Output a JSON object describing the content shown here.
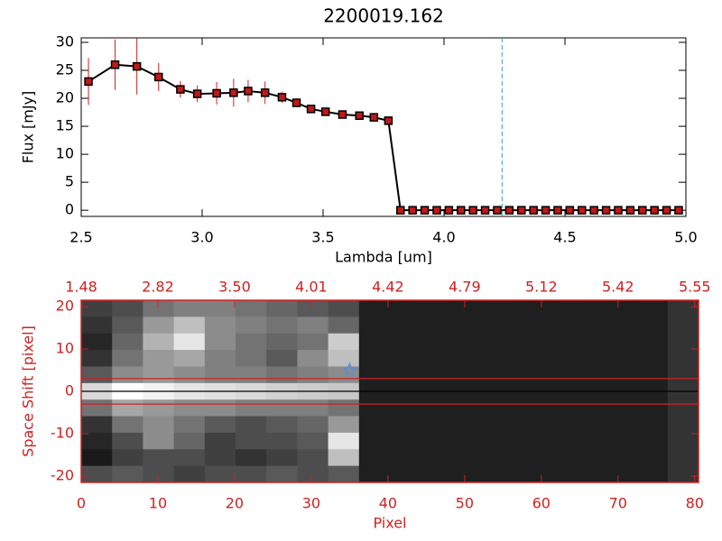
{
  "chart_data": [
    {
      "type": "line",
      "title": "2200019.162",
      "xlabel": "Lambda [um]",
      "ylabel": "Flux [mJy]",
      "x": [
        2.53,
        2.64,
        2.73,
        2.82,
        2.91,
        2.98,
        3.06,
        3.13,
        3.19,
        3.26,
        3.33,
        3.39,
        3.45,
        3.51,
        3.58,
        3.65,
        3.71,
        3.77,
        3.82,
        3.87,
        3.92,
        3.97,
        4.02,
        4.07,
        4.12,
        4.17,
        4.22,
        4.27,
        4.32,
        4.37,
        4.42,
        4.47,
        4.52,
        4.57,
        4.62,
        4.67,
        4.72,
        4.77,
        4.82,
        4.87,
        4.92,
        4.97
      ],
      "values": [
        23,
        26,
        25.7,
        23.8,
        21.6,
        20.8,
        20.9,
        21.0,
        21.3,
        21.0,
        20.2,
        19.2,
        18.1,
        17.6,
        17.1,
        16.9,
        16.6,
        16.0,
        0,
        0,
        0,
        0,
        0,
        0,
        0,
        0,
        0,
        0,
        0,
        0,
        0,
        0,
        0,
        0,
        0,
        0,
        0,
        0,
        0,
        0,
        0,
        0
      ],
      "errors": [
        4.2,
        4.5,
        5,
        2.5,
        1.5,
        1.5,
        2,
        2.5,
        2,
        2,
        1,
        0.8,
        0.3,
        0.3,
        0.3,
        0.3,
        0.3,
        0.3,
        0,
        0,
        0,
        0,
        0,
        0,
        0,
        0,
        0,
        0,
        0,
        0,
        0,
        0,
        0,
        0,
        0,
        0,
        0,
        0,
        0,
        0,
        0,
        0
      ],
      "color": "#000000",
      "marker_color": "#c01818",
      "error_color": "#d02020",
      "vline": 4.24,
      "vline_color": "#3aa0c0",
      "xlim": [
        2.5,
        5.0
      ],
      "ylim": [
        -1.1,
        30.8
      ],
      "xticks": [
        2.5,
        {
          "value": 3,
          "label": "3.0"
        },
        3.5,
        {
          "value": 4,
          "label": "4.0"
        },
        4.5,
        {
          "value": 5,
          "label": "5.0"
        }
      ],
      "yticks": [
        0,
        5,
        10,
        15,
        20,
        25,
        30
      ],
      "axis_color": "#000000"
    },
    {
      "type": "image",
      "xlabel": "Pixel",
      "ylabel": "Space Shift [pixel]",
      "xlim": [
        0,
        80.5
      ],
      "ylim": [
        -21.5,
        21.5
      ],
      "xticks": [
        0,
        10,
        20,
        30,
        40,
        50,
        60,
        70,
        80
      ],
      "yticks": [
        -20,
        -10,
        0,
        10,
        20
      ],
      "x2ticks": [
        {
          "value": 0,
          "label": "1.48"
        },
        {
          "value": 10,
          "label": "2.82"
        },
        {
          "value": 20,
          "label": "3.50"
        },
        {
          "value": 30,
          "label": "4.01"
        },
        {
          "value": 40,
          "label": "4.42"
        },
        {
          "value": 50,
          "label": "4.79"
        },
        {
          "value": 60,
          "label": "5.12"
        },
        {
          "value": 70,
          "label": "5.42"
        },
        {
          "value": 80,
          "label": "5.55"
        }
      ],
      "axis_color": "#d02020",
      "image": [
        [
          0.25,
          0.3,
          0.45,
          0.5,
          0.5,
          0.45,
          0.4,
          0.35,
          0.3,
          0.12,
          0.12,
          0.12,
          0.12,
          0.12,
          0.12,
          0.12,
          0.12,
          0.12,
          0.12,
          0.2
        ],
        [
          0.2,
          0.35,
          0.6,
          0.75,
          0.55,
          0.5,
          0.45,
          0.5,
          0.4,
          0.12,
          0.12,
          0.12,
          0.12,
          0.12,
          0.12,
          0.12,
          0.12,
          0.12,
          0.12,
          0.2
        ],
        [
          0.15,
          0.4,
          0.7,
          0.9,
          0.55,
          0.45,
          0.4,
          0.45,
          0.8,
          0.12,
          0.12,
          0.12,
          0.12,
          0.12,
          0.12,
          0.12,
          0.12,
          0.12,
          0.12,
          0.2
        ],
        [
          0.2,
          0.45,
          0.6,
          0.65,
          0.5,
          0.45,
          0.35,
          0.55,
          0.75,
          0.12,
          0.12,
          0.12,
          0.12,
          0.12,
          0.12,
          0.12,
          0.12,
          0.12,
          0.12,
          0.2
        ],
        [
          0.35,
          0.55,
          0.6,
          0.55,
          0.5,
          0.5,
          0.45,
          0.5,
          0.55,
          0.12,
          0.12,
          0.12,
          0.12,
          0.12,
          0.12,
          0.12,
          0.12,
          0.12,
          0.12,
          0.2
        ],
        [
          0.85,
          1.0,
          0.95,
          0.9,
          0.88,
          0.85,
          0.82,
          0.8,
          0.78,
          0.12,
          0.12,
          0.12,
          0.12,
          0.12,
          0.12,
          0.12,
          0.12,
          0.12,
          0.12,
          0.2
        ],
        [
          0.45,
          0.65,
          0.6,
          0.55,
          0.55,
          0.5,
          0.5,
          0.5,
          0.45,
          0.12,
          0.12,
          0.12,
          0.12,
          0.12,
          0.12,
          0.12,
          0.12,
          0.12,
          0.12,
          0.2
        ],
        [
          0.2,
          0.45,
          0.55,
          0.45,
          0.35,
          0.3,
          0.35,
          0.4,
          0.6,
          0.12,
          0.12,
          0.12,
          0.12,
          0.12,
          0.12,
          0.12,
          0.12,
          0.12,
          0.12,
          0.2
        ],
        [
          0.15,
          0.3,
          0.55,
          0.4,
          0.25,
          0.3,
          0.3,
          0.35,
          0.9,
          0.12,
          0.12,
          0.12,
          0.12,
          0.12,
          0.12,
          0.12,
          0.12,
          0.12,
          0.12,
          0.2
        ],
        [
          0.1,
          0.25,
          0.3,
          0.3,
          0.25,
          0.2,
          0.25,
          0.3,
          0.75,
          0.12,
          0.12,
          0.12,
          0.12,
          0.12,
          0.12,
          0.12,
          0.12,
          0.12,
          0.12,
          0.2
        ],
        [
          0.3,
          0.35,
          0.3,
          0.25,
          0.3,
          0.3,
          0.35,
          0.3,
          0.35,
          0.12,
          0.12,
          0.12,
          0.12,
          0.12,
          0.12,
          0.12,
          0.12,
          0.12,
          0.12,
          0.2
        ]
      ],
      "hlines": [
        {
          "value": 3,
          "color": "#d02020"
        },
        {
          "value": -3,
          "color": "#d02020"
        },
        {
          "value": 0,
          "color": "#000000"
        }
      ],
      "star": {
        "x": 35,
        "y": 5,
        "color": "#5b8fd0"
      }
    }
  ]
}
